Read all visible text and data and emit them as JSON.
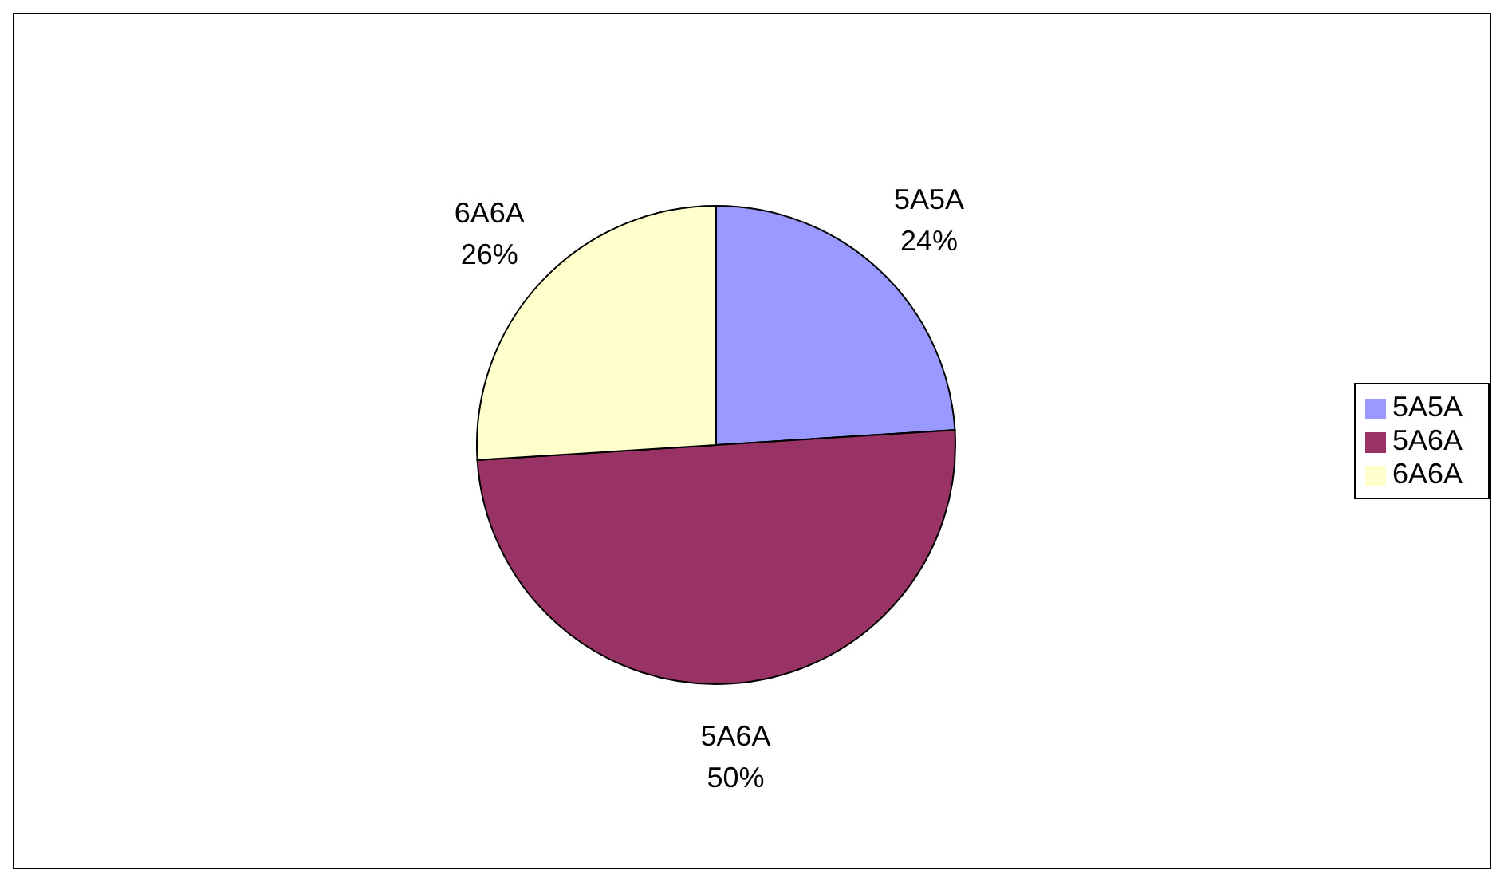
{
  "chart_data": {
    "type": "pie",
    "categories": [
      "5A5A",
      "5A6A",
      "6A6A"
    ],
    "values": [
      24,
      50,
      26
    ],
    "colors": [
      "#9999ff",
      "#993366",
      "#ffffcc"
    ],
    "value_labels": [
      "24%",
      "50%",
      "26%"
    ],
    "legend": "right"
  }
}
